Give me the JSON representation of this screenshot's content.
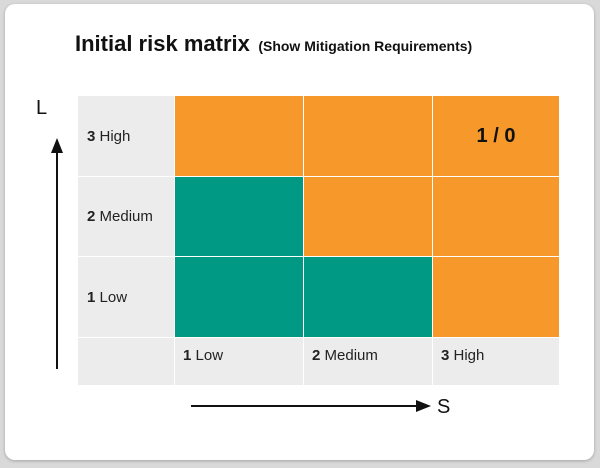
{
  "title": {
    "main": "Initial risk matrix",
    "sub": "(Show Mitigation Requirements)"
  },
  "axes": {
    "likelihood_label": "L",
    "severity_label": "S"
  },
  "rows": [
    {
      "num": "3",
      "label": "High"
    },
    {
      "num": "2",
      "label": "Medium"
    },
    {
      "num": "1",
      "label": "Low"
    }
  ],
  "columns": [
    {
      "num": "1",
      "label": "Low"
    },
    {
      "num": "2",
      "label": "Medium"
    },
    {
      "num": "3",
      "label": "High"
    }
  ],
  "cells": [
    [
      {
        "color": "orange",
        "text": ""
      },
      {
        "color": "orange",
        "text": ""
      },
      {
        "color": "orange",
        "text": "1 / 0"
      }
    ],
    [
      {
        "color": "teal",
        "text": ""
      },
      {
        "color": "orange",
        "text": ""
      },
      {
        "color": "orange",
        "text": ""
      }
    ],
    [
      {
        "color": "teal",
        "text": ""
      },
      {
        "color": "teal",
        "text": ""
      },
      {
        "color": "orange",
        "text": ""
      }
    ]
  ],
  "colors": {
    "orange": "#f7982b",
    "teal": "#009a84",
    "label_background": "#ececec"
  }
}
